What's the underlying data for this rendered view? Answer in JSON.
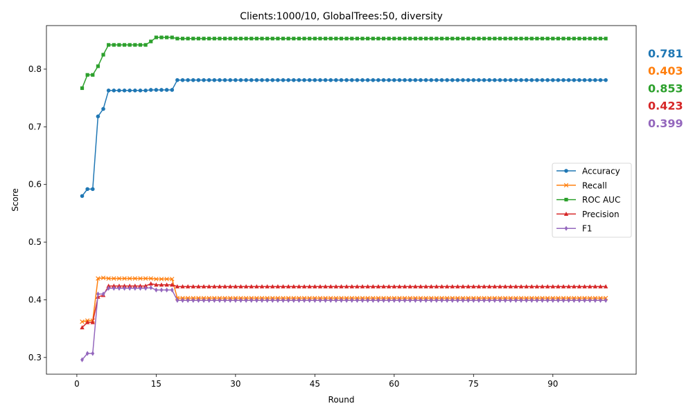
{
  "chart_data": {
    "type": "line",
    "title": "Clients:1000/10, GlobalTrees:50, diversity",
    "xlabel": "Round",
    "ylabel": "Score",
    "xlim": [
      -5.75,
      105.75
    ],
    "ylim": [
      0.271,
      0.8755
    ],
    "xticks": [
      0,
      15,
      30,
      45,
      60,
      75,
      90
    ],
    "yticks": [
      0.3,
      0.4,
      0.5,
      0.6,
      0.7,
      0.8
    ],
    "ytick_labels": [
      "0.3",
      "0.4",
      "0.5",
      "0.6",
      "0.7",
      "0.8"
    ],
    "grid": false,
    "legend_position": "center-right",
    "rounds": [
      1,
      100
    ],
    "series": [
      {
        "name": "Accuracy",
        "color": "#1f77b4",
        "marker": "circle",
        "head": [
          0.58,
          0.592,
          0.592,
          0.718,
          0.731,
          0.763,
          0.763,
          0.763,
          0.763,
          0.763,
          0.763,
          0.763,
          0.763,
          0.764,
          0.764,
          0.764,
          0.764,
          0.764
        ],
        "tail_value": 0.781
      },
      {
        "name": "Recall",
        "color": "#ff7f0e",
        "marker": "x",
        "head": [
          0.362,
          0.364,
          0.364,
          0.437,
          0.438,
          0.437,
          0.437,
          0.437,
          0.437,
          0.437,
          0.437,
          0.437,
          0.437,
          0.437,
          0.436,
          0.436,
          0.436,
          0.436
        ],
        "tail_value": 0.403
      },
      {
        "name": "ROC AUC",
        "color": "#2ca02c",
        "marker": "square",
        "head": [
          0.767,
          0.79,
          0.79,
          0.805,
          0.825,
          0.842,
          0.842,
          0.842,
          0.842,
          0.842,
          0.842,
          0.842,
          0.842,
          0.848,
          0.855,
          0.855,
          0.855,
          0.855
        ],
        "tail_value": 0.853
      },
      {
        "name": "Precision",
        "color": "#d62728",
        "marker": "triangle",
        "head": [
          0.352,
          0.361,
          0.361,
          0.405,
          0.408,
          0.424,
          0.424,
          0.424,
          0.424,
          0.424,
          0.424,
          0.424,
          0.424,
          0.428,
          0.426,
          0.426,
          0.426,
          0.426
        ],
        "tail_value": 0.423
      },
      {
        "name": "F1",
        "color": "#9467bd",
        "marker": "diamond",
        "head": [
          0.296,
          0.307,
          0.307,
          0.41,
          0.41,
          0.42,
          0.42,
          0.42,
          0.42,
          0.42,
          0.42,
          0.42,
          0.42,
          0.421,
          0.417,
          0.417,
          0.417,
          0.417
        ],
        "tail_value": 0.399
      }
    ],
    "final_values": [
      "0.781",
      "0.403",
      "0.853",
      "0.423",
      "0.399"
    ]
  }
}
